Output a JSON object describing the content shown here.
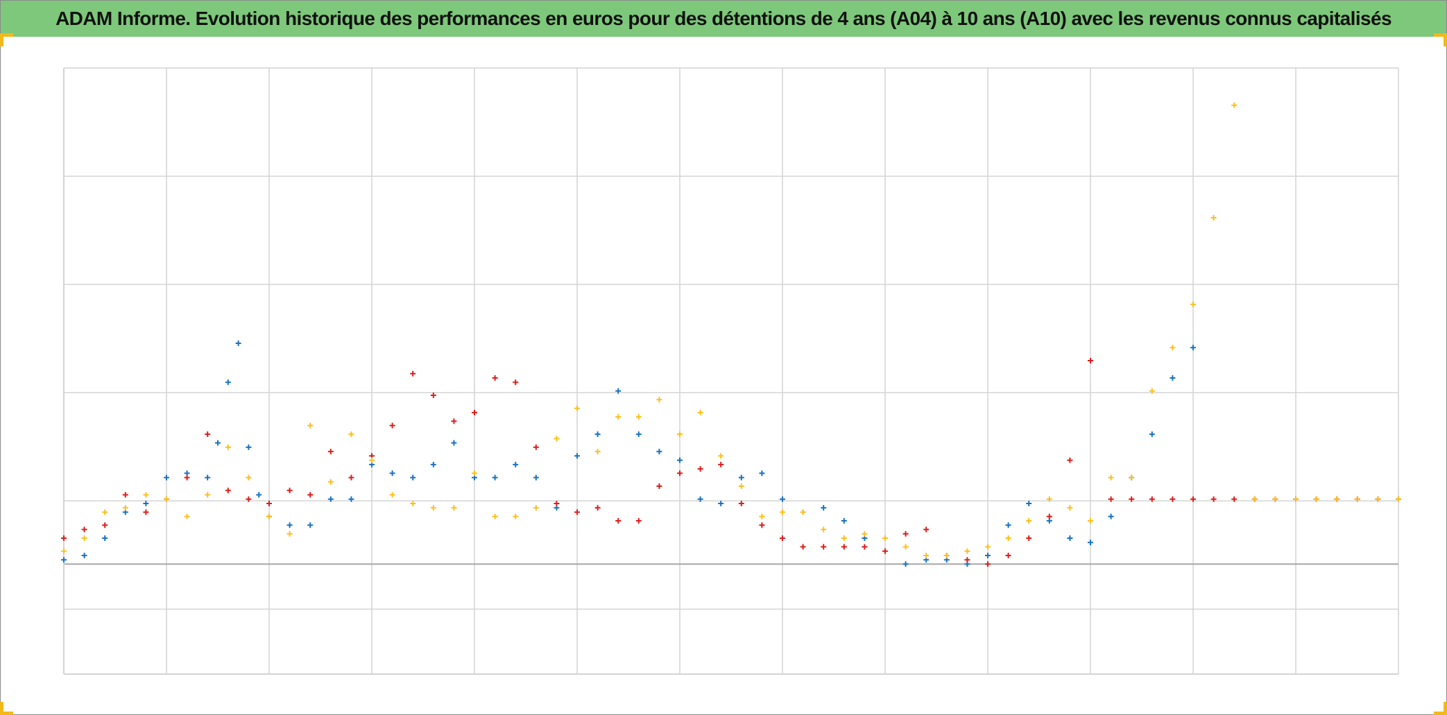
{
  "header": {
    "title": "ADAM Informe. Evolution historique des performances en euros pour des détentions de 4 ans (A04) à 10 ans (A10) avec les revenus connus capitalisés"
  },
  "colors": {
    "title_bar": "#7dc87a",
    "series_blue": "#1672c4",
    "series_red": "#e01b1b",
    "series_yellow": "#fdbf1a",
    "gridline": "#d4d4d4",
    "zero_line": "#a6a6a6",
    "corner_marks": "#f2b91c"
  },
  "chart_data": {
    "type": "scatter",
    "marker": "plus",
    "title": "ADAM Informe. Evolution historique des performances en euros pour des détentions de 4 ans (A04) à 10 ans (A10) avec les revenus connus capitalisés",
    "xlabel": "",
    "ylabel": "",
    "grid": true,
    "legend": "none",
    "tick_labels_visible": false,
    "x_gridlines": 13,
    "y_gridlines": 7,
    "xlim": [
      0,
      1300
    ],
    "ylim": [
      -1.27,
      5.73
    ],
    "series": [
      {
        "color": "#1672c4",
        "x": [
          0,
          20,
          40,
          60,
          80,
          100,
          120,
          140,
          150,
          160,
          170,
          180,
          190,
          200,
          220,
          240,
          260,
          280,
          300,
          320,
          340,
          360,
          380,
          400,
          420,
          440,
          460,
          480,
          500,
          520,
          540,
          560,
          580,
          600,
          620,
          640,
          660,
          680,
          700,
          720,
          740,
          760,
          780,
          800,
          820,
          840,
          860,
          880,
          900,
          920,
          940,
          960,
          980,
          1000,
          1020,
          1040,
          1060,
          1080,
          1100
        ],
        "y": [
          0.05,
          0.1,
          0.3,
          0.6,
          0.7,
          1.0,
          1.05,
          1.0,
          1.4,
          2.1,
          2.55,
          1.35,
          0.8,
          0.55,
          0.45,
          0.45,
          0.75,
          0.75,
          1.15,
          1.05,
          1.0,
          1.15,
          1.4,
          1.0,
          1.0,
          1.15,
          1.0,
          0.65,
          1.25,
          1.5,
          2.0,
          1.5,
          1.3,
          1.2,
          0.75,
          0.7,
          1.0,
          1.05,
          0.75,
          0.6,
          0.65,
          0.5,
          0.3,
          0.3,
          0.0,
          0.05,
          0.05,
          0.0,
          0.1,
          0.45,
          0.7,
          0.5,
          0.3,
          0.25,
          0.55,
          1.0,
          1.5,
          2.15,
          2.5
        ]
      },
      {
        "color": "#e01b1b",
        "x": [
          0,
          20,
          40,
          60,
          80,
          100,
          120,
          140,
          160,
          180,
          200,
          220,
          240,
          260,
          280,
          300,
          320,
          340,
          360,
          380,
          400,
          420,
          440,
          460,
          480,
          500,
          520,
          540,
          560,
          580,
          600,
          620,
          640,
          660,
          680,
          700,
          720,
          740,
          760,
          780,
          800,
          820,
          840,
          860,
          880,
          900,
          920,
          940,
          960,
          980,
          1000,
          1020,
          1040,
          1060,
          1080,
          1100,
          1120,
          1140,
          1160,
          1180,
          1200,
          1220,
          1240,
          1260,
          1280,
          1300
        ],
        "y": [
          0.3,
          0.4,
          0.45,
          0.8,
          0.6,
          0.75,
          1.0,
          1.5,
          0.85,
          0.75,
          0.7,
          0.85,
          0.8,
          1.3,
          1.0,
          1.25,
          1.6,
          2.2,
          1.95,
          1.65,
          1.75,
          2.15,
          2.1,
          1.35,
          0.7,
          0.6,
          0.65,
          0.5,
          0.5,
          0.9,
          1.05,
          1.1,
          1.15,
          0.7,
          0.45,
          0.3,
          0.2,
          0.2,
          0.2,
          0.2,
          0.15,
          0.35,
          0.4,
          0.1,
          0.05,
          0.0,
          0.1,
          0.3,
          0.55,
          1.2,
          2.35,
          0.75,
          0.75,
          0.75,
          0.75,
          0.75,
          0.75,
          0.75,
          0.75,
          0.75,
          0.75,
          0.75,
          0.75,
          0.75,
          0.75,
          0.75
        ]
      },
      {
        "color": "#fdbf1a",
        "x": [
          0,
          20,
          40,
          60,
          80,
          100,
          120,
          140,
          160,
          180,
          200,
          220,
          240,
          260,
          280,
          300,
          320,
          340,
          360,
          380,
          400,
          420,
          440,
          460,
          480,
          500,
          520,
          540,
          560,
          580,
          600,
          620,
          640,
          660,
          680,
          700,
          720,
          740,
          760,
          780,
          800,
          820,
          840,
          860,
          880,
          900,
          920,
          940,
          960,
          980,
          1000,
          1020,
          1040,
          1060,
          1080,
          1100,
          1120,
          1140,
          1160,
          1180,
          1200,
          1220,
          1240,
          1260,
          1280,
          1300
        ],
        "y": [
          0.15,
          0.3,
          0.6,
          0.65,
          0.8,
          0.75,
          0.55,
          0.8,
          1.35,
          1.0,
          0.55,
          0.35,
          1.6,
          0.95,
          1.5,
          1.2,
          0.8,
          0.7,
          0.65,
          0.65,
          1.05,
          0.55,
          0.55,
          0.65,
          1.45,
          1.8,
          1.3,
          1.7,
          1.7,
          1.9,
          1.5,
          1.75,
          1.25,
          0.9,
          0.55,
          0.6,
          0.6,
          0.4,
          0.3,
          0.35,
          0.3,
          0.2,
          0.1,
          0.1,
          0.15,
          0.2,
          0.3,
          0.5,
          0.75,
          0.65,
          0.5,
          1.0,
          1.0,
          2.0,
          2.5,
          3.0,
          4.0,
          5.3,
          0.75,
          0.75,
          0.75,
          0.75,
          0.75,
          0.75,
          0.75,
          0.75
        ]
      }
    ]
  }
}
